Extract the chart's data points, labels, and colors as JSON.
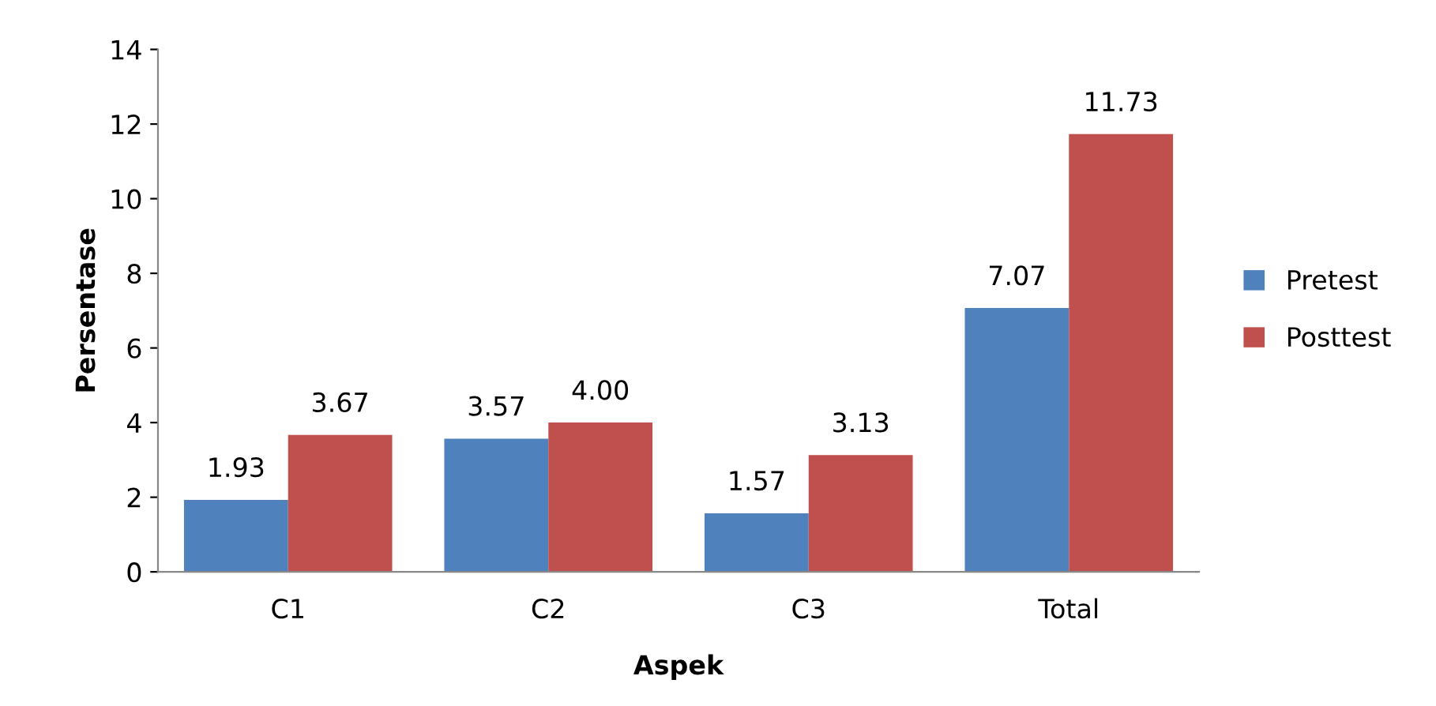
{
  "chart_data": {
    "type": "bar",
    "xlabel": "Aspek",
    "ylabel": "Persentase",
    "categories": [
      "C1",
      "C2",
      "C3",
      "Total"
    ],
    "series": [
      {
        "name": "Pretest",
        "color": "#4f81bd",
        "values": [
          1.93,
          3.57,
          1.57,
          7.07
        ],
        "value_labels": [
          "1.93",
          "3.57",
          "1.57",
          "7.07"
        ]
      },
      {
        "name": "Posttest",
        "color": "#c0504d",
        "values": [
          3.67,
          4.0,
          3.13,
          11.73
        ],
        "value_labels": [
          "3.67",
          "4.00",
          "3.13",
          "11.73"
        ]
      }
    ],
    "ylim": [
      0,
      14
    ],
    "yticks": [
      0,
      2,
      4,
      6,
      8,
      10,
      12,
      14
    ],
    "grid": false,
    "legend": "right"
  }
}
